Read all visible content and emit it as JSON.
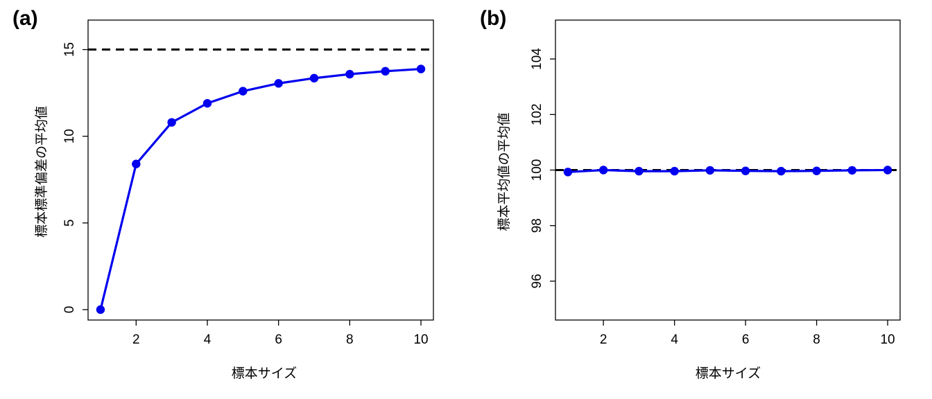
{
  "chart_data": [
    {
      "type": "line",
      "panel_label": "(a)",
      "title": "",
      "xlabel": "標本サイズ",
      "ylabel": "標本標準偏差の平均値",
      "xlim": [
        0.65,
        10.35
      ],
      "ylim": [
        -0.6,
        16.7
      ],
      "xticks": [
        2,
        4,
        6,
        8,
        10
      ],
      "yticks": [
        0,
        5,
        10,
        15
      ],
      "xtick_labels": [
        "2",
        "4",
        "6",
        "8",
        "10"
      ],
      "ytick_labels": [
        "0",
        "5",
        "10",
        "15"
      ],
      "reference_line": {
        "y": 15,
        "style": "dashed",
        "color": "#000000"
      },
      "color": "#0000ee",
      "x": [
        1,
        2,
        3,
        4,
        5,
        6,
        7,
        8,
        9,
        10
      ],
      "y": [
        0,
        8.4,
        10.8,
        11.9,
        12.6,
        13.05,
        13.35,
        13.58,
        13.75,
        13.88
      ],
      "grid": false,
      "legend": "none"
    },
    {
      "type": "line",
      "panel_label": "(b)",
      "title": "",
      "xlabel": "標本サイズ",
      "ylabel": "標本平均値の平均値",
      "xlim": [
        0.65,
        10.35
      ],
      "ylim": [
        94.6,
        105.4
      ],
      "xticks": [
        2,
        4,
        6,
        8,
        10
      ],
      "yticks": [
        96,
        98,
        100,
        102,
        104
      ],
      "xtick_labels": [
        "2",
        "4",
        "6",
        "8",
        "10"
      ],
      "ytick_labels": [
        "96",
        "98",
        "100",
        "102",
        "104"
      ],
      "reference_line": {
        "y": 100,
        "style": "dashed",
        "color": "#000000"
      },
      "color": "#0000ee",
      "x": [
        1,
        2,
        3,
        4,
        5,
        6,
        7,
        8,
        9,
        10
      ],
      "y": [
        99.93,
        100.0,
        99.96,
        99.96,
        99.99,
        99.97,
        99.96,
        99.97,
        99.99,
        100.0
      ],
      "grid": false,
      "legend": "none"
    }
  ]
}
